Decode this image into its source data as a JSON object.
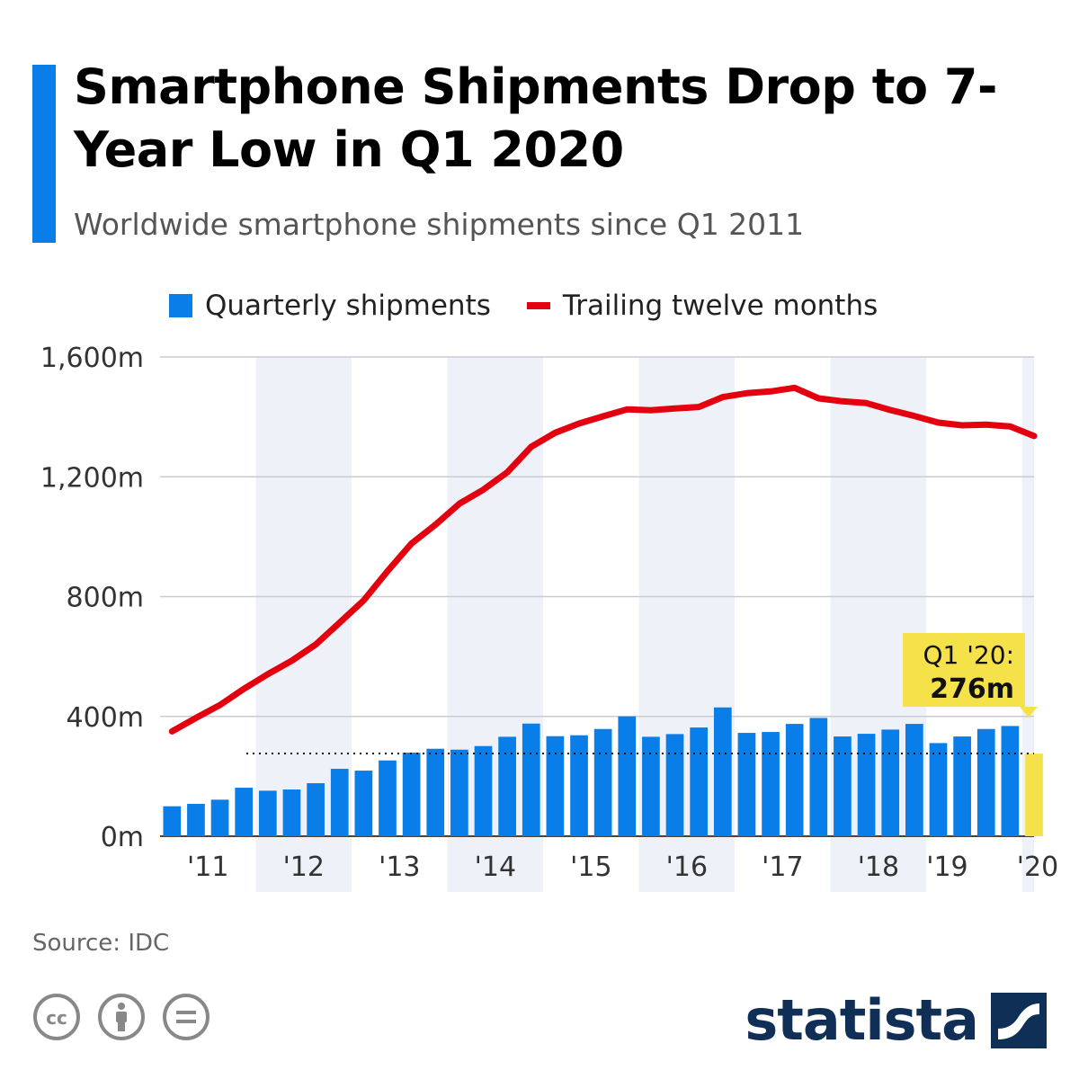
{
  "header": {
    "title": "Smartphone Shipments Drop to 7-Year Low in Q1 2020",
    "subtitle": "Worldwide smartphone shipments since Q1 2011"
  },
  "colors": {
    "accent": "#0a7ee8",
    "bars": "#0a7ee8",
    "highlight": "#f5e14a",
    "line": "#e3000f",
    "band": "#eef2f8"
  },
  "chart_data": {
    "type": "bar",
    "series": [
      {
        "name": "Quarterly shipments",
        "type": "bar",
        "values": [
          100,
          108,
          122,
          162,
          152,
          156,
          177,
          225,
          219,
          253,
          279,
          292,
          289,
          301,
          332,
          376,
          334,
          337,
          358,
          400,
          332,
          341,
          363,
          430,
          345,
          348,
          375,
          395,
          333,
          342,
          356,
          375,
          311,
          333,
          358,
          368,
          276
        ]
      },
      {
        "name": "Trailing twelve months",
        "type": "line",
        "values": [
          350,
          395,
          438,
          492,
          541,
          586,
          640,
          713,
          787,
          885,
          977,
          1040,
          1110,
          1157,
          1215,
          1300,
          1347,
          1378,
          1402,
          1425,
          1422,
          1428,
          1433,
          1466,
          1479,
          1485,
          1497,
          1462,
          1452,
          1446,
          1423,
          1403,
          1381,
          1372,
          1374,
          1368,
          1336
        ]
      }
    ],
    "x_labels": [
      "'11",
      "'12",
      "'13",
      "'14",
      "'15",
      "'16",
      "'17",
      "'18",
      "'19",
      "'20"
    ],
    "y_ticks": [
      "0m",
      "400m",
      "800m",
      "1,200m",
      "1,600m"
    ],
    "y_tick_values": [
      0,
      400,
      800,
      1200,
      1600
    ],
    "ylim": [
      0,
      1600
    ],
    "reference_line": 276,
    "annotation": {
      "line1": "Q1 '20:",
      "line2": "276m"
    },
    "grid": true,
    "legend_position": "top-left"
  },
  "footer": {
    "source": "Source: IDC",
    "brand": "statista",
    "license_icons": [
      "creative-commons-icon",
      "attribution-icon",
      "no-derivatives-icon"
    ]
  }
}
